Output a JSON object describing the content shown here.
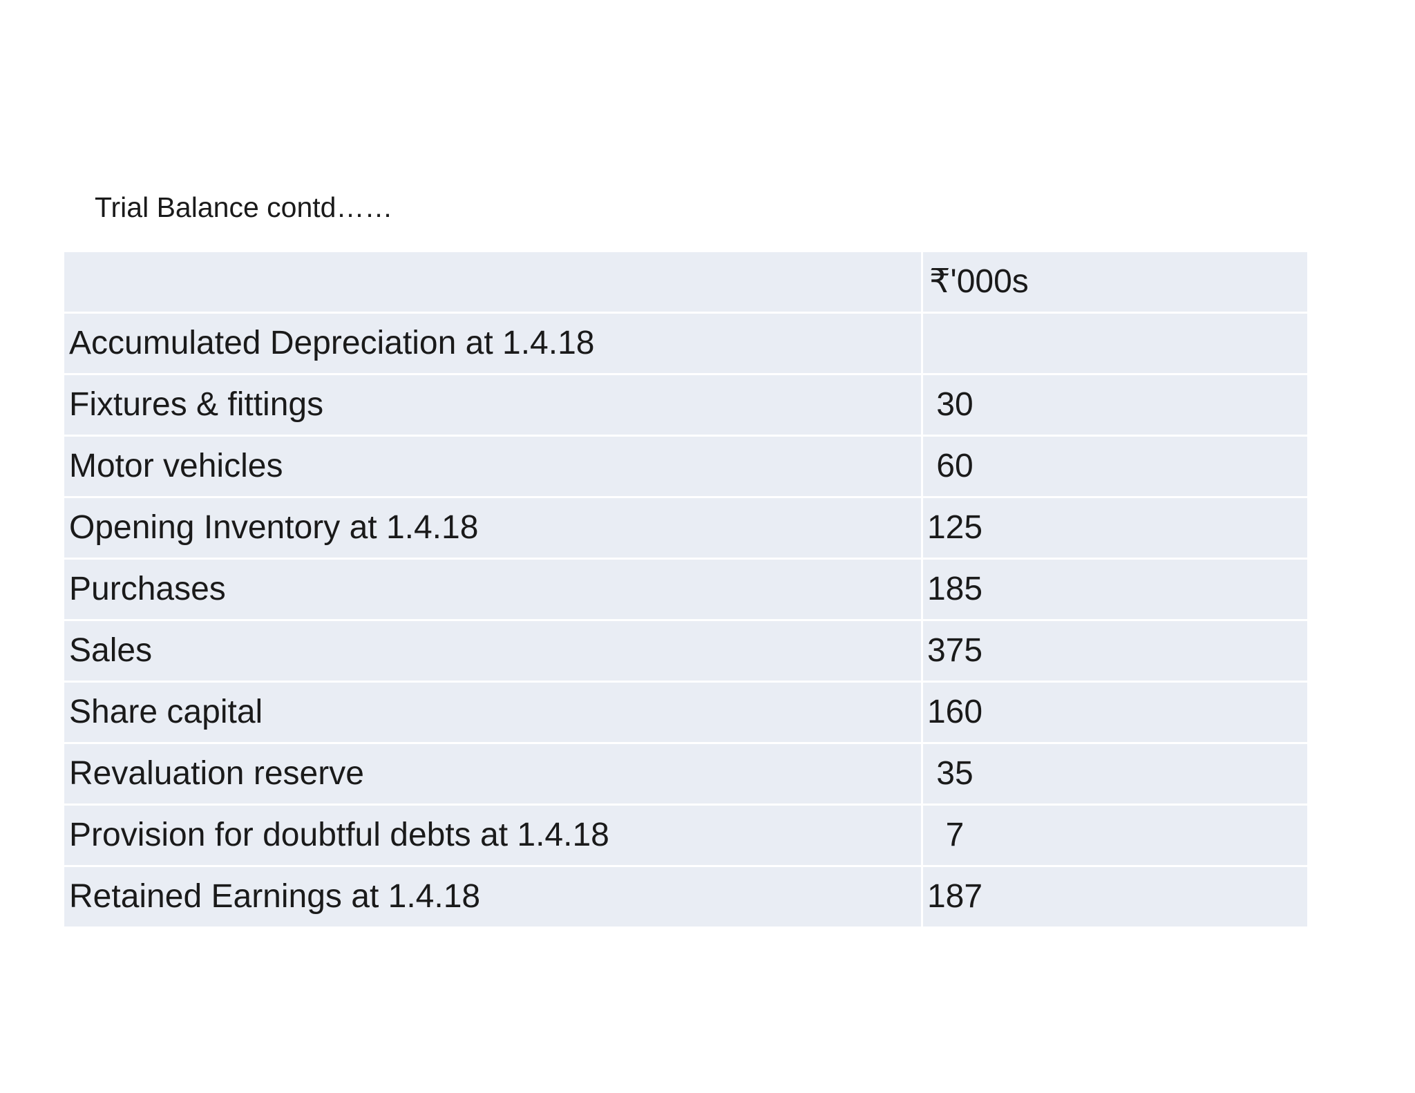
{
  "title": "Trial Balance contd……",
  "colors": {
    "page_bg": "#ffffff",
    "row_bg": "#e9edf4",
    "text_color": "#1a1a1a"
  },
  "table": {
    "unit_header": "₹'000s",
    "rows": [
      {
        "label": "Accumulated Depreciation at 1.4.18",
        "value": ""
      },
      {
        "label": "Fixtures & fittings",
        "value": "30"
      },
      {
        "label": "Motor vehicles",
        "value": "60"
      },
      {
        "label": "Opening Inventory at 1.4.18",
        "value": "125"
      },
      {
        "label": "Purchases",
        "value": "185"
      },
      {
        "label": "Sales",
        "value": "375"
      },
      {
        "label": "Share capital",
        "value": "160"
      },
      {
        "label": "Revaluation reserve",
        "value": "35"
      },
      {
        "label": "Provision for doubtful debts at 1.4.18",
        "value": "7"
      },
      {
        "label": "Retained Earnings at 1.4.18",
        "value": "187"
      }
    ]
  }
}
